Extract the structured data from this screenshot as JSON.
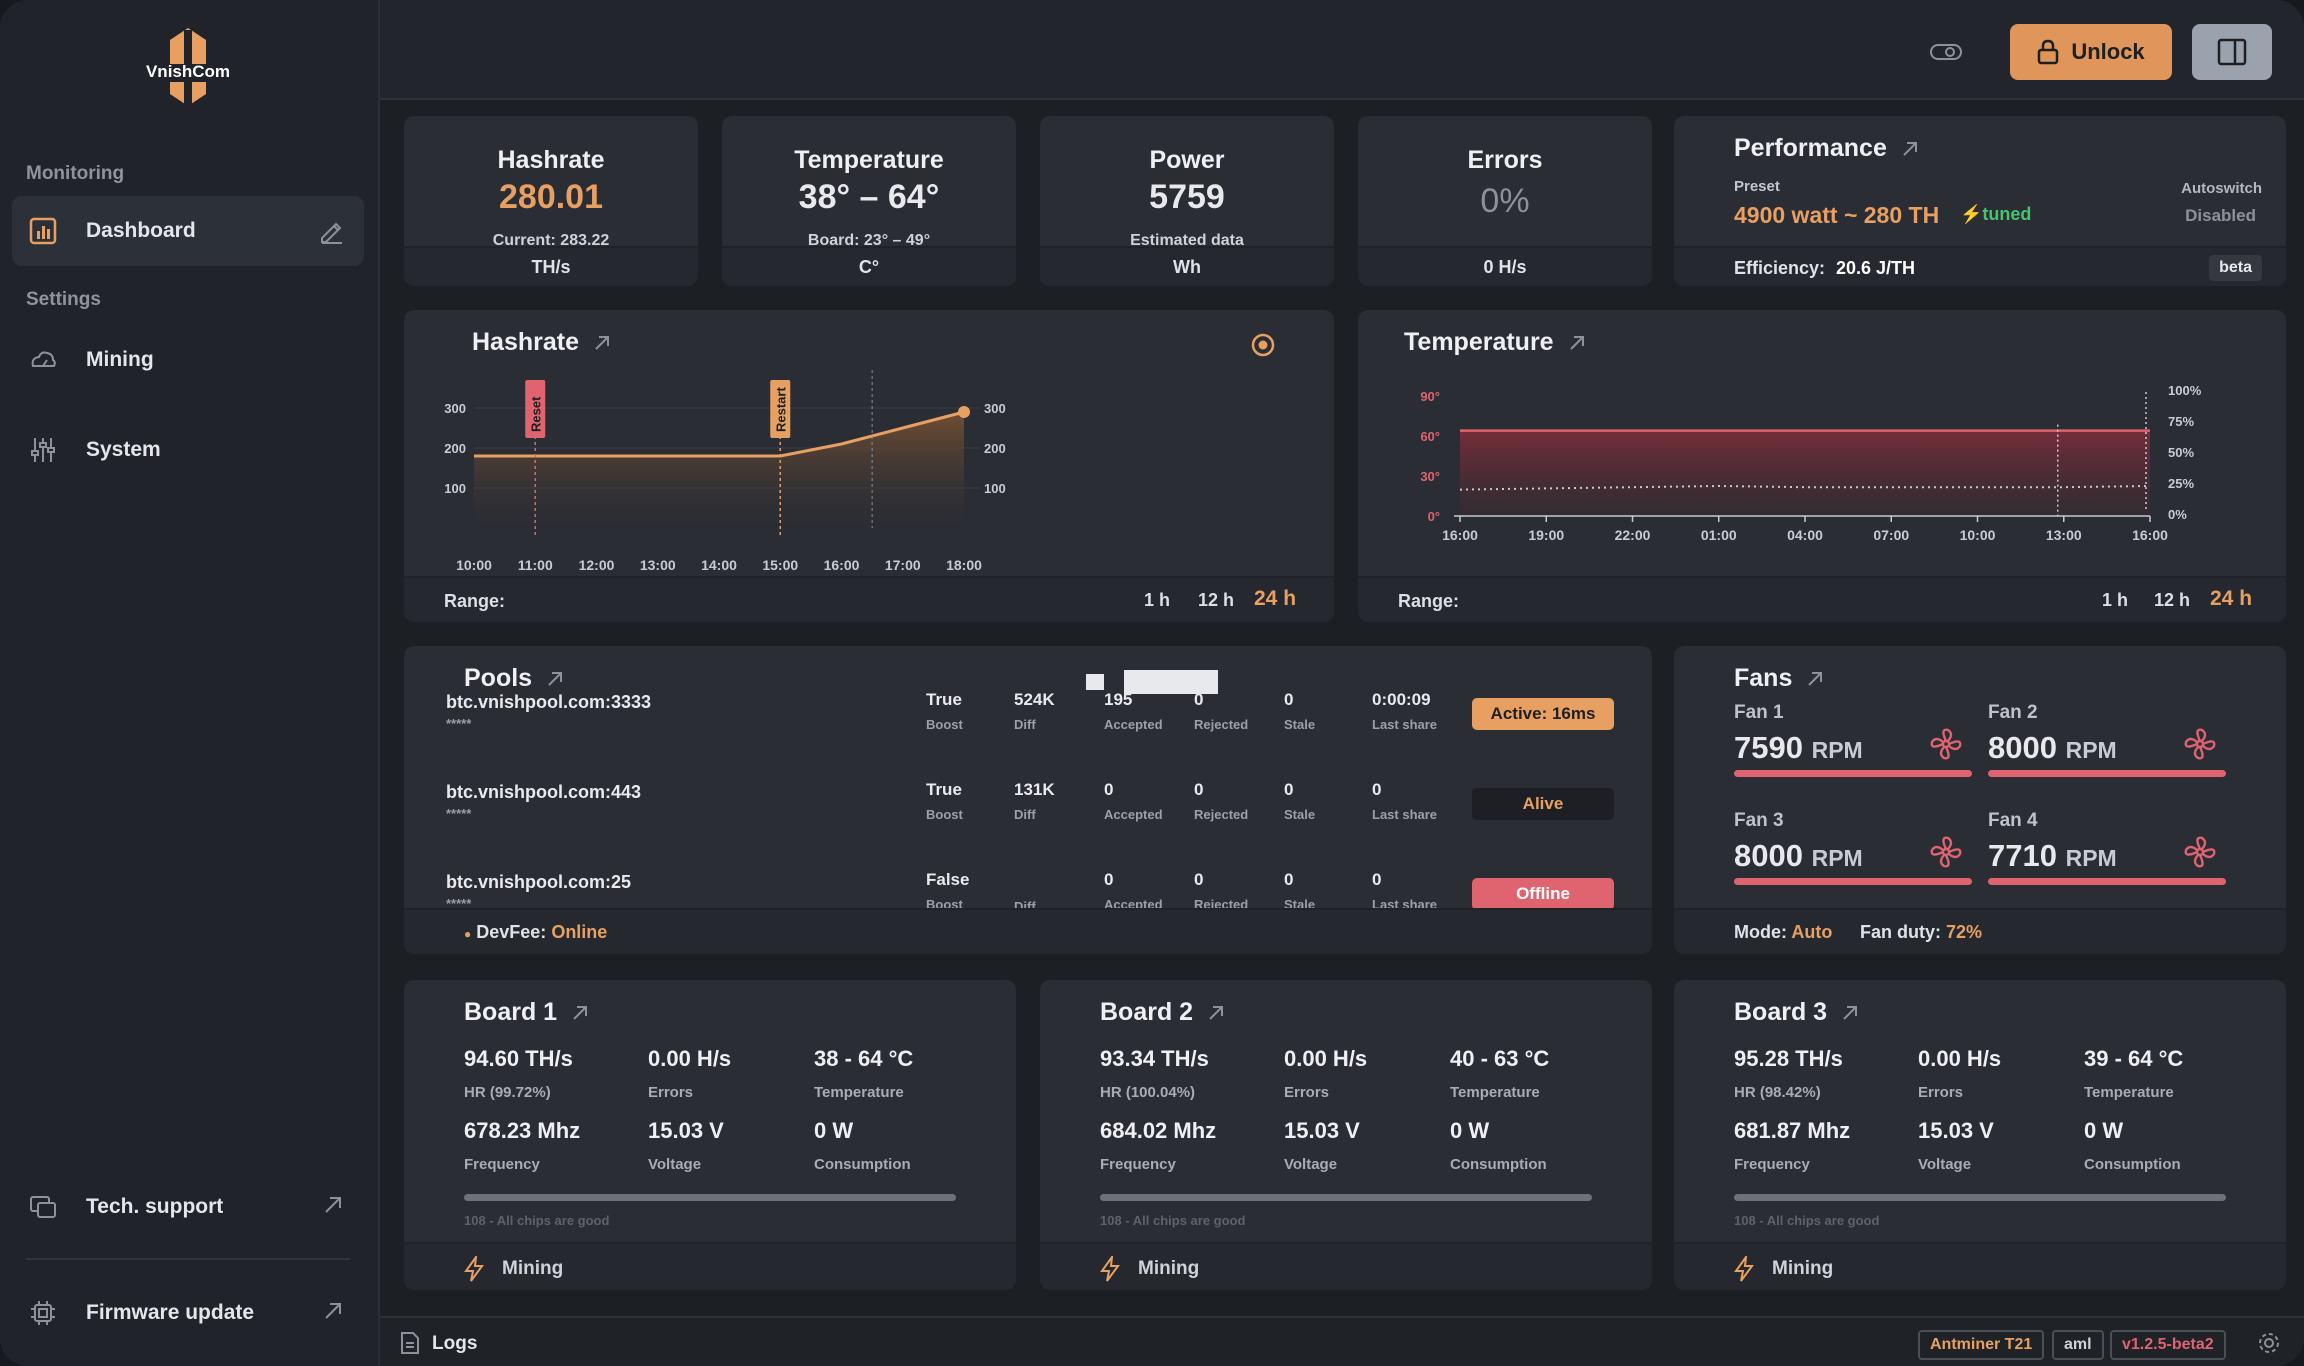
{
  "app": {
    "logo": "VnishCom"
  },
  "sidebar": {
    "sections": [
      "Monitoring",
      "Settings"
    ],
    "items": [
      {
        "label": "Dashboard",
        "icon": "chart-icon"
      },
      {
        "label": "Mining",
        "icon": "cloud-icon"
      },
      {
        "label": "System",
        "icon": "sliders-icon"
      }
    ],
    "bottom": [
      {
        "label": "Tech. support",
        "icon": "support-icon"
      },
      {
        "label": "Firmware update",
        "icon": "chip-icon"
      }
    ]
  },
  "topbar": {
    "unlock_label": "Unlock"
  },
  "stats": {
    "hashrate": {
      "title": "Hashrate",
      "value": "280.01",
      "sub": "Current: 283.22",
      "unit": "TH/s"
    },
    "temperature": {
      "title": "Temperature",
      "value": "38° – 64°",
      "sub": "Board: 23° – 49°",
      "unit": "C°"
    },
    "power": {
      "title": "Power",
      "value": "5759",
      "sub": "Estimated data",
      "unit": "Wh"
    },
    "errors": {
      "title": "Errors",
      "value": "0%",
      "unit": "0 H/s"
    }
  },
  "performance": {
    "title": "Performance",
    "preset_label": "Preset",
    "preset_value": "4900 watt ~ 280 TH",
    "tuned": "tuned",
    "autoswitch_label": "Autoswitch",
    "autoswitch_value": "Disabled",
    "efficiency_label": "Efficiency:",
    "efficiency_value": "20.6 J/TH",
    "beta": "beta"
  },
  "hashrate_chart": {
    "title": "Hashrate",
    "range_label": "Range:",
    "ranges": [
      "1 h",
      "12 h",
      "24 h"
    ],
    "selected_range": "24 h",
    "markers": [
      "Reset",
      "Restart"
    ]
  },
  "temperature_chart": {
    "title": "Temperature",
    "range_label": "Range:",
    "ranges": [
      "1 h",
      "12 h",
      "24 h"
    ],
    "selected_range": "24 h"
  },
  "chart_data": [
    {
      "type": "area",
      "title": "Hashrate",
      "x": [
        "10:00",
        "11:00",
        "12:00",
        "13:00",
        "14:00",
        "15:00",
        "16:00",
        "17:00",
        "18:00"
      ],
      "values": [
        180,
        180,
        180,
        180,
        180,
        180,
        210,
        250,
        290
      ],
      "ylim": [
        0,
        340
      ],
      "yticks": [
        100,
        200,
        300
      ],
      "ytick_labels": [
        "100",
        "200",
        "300"
      ],
      "annotations": [
        {
          "x": "11:00",
          "label": "Reset"
        },
        {
          "x": "15:00",
          "label": "Restart"
        }
      ],
      "color": "#e7a062"
    },
    {
      "type": "area",
      "title": "Temperature",
      "x": [
        "16:00",
        "19:00",
        "22:00",
        "01:00",
        "04:00",
        "07:00",
        "10:00",
        "13:00",
        "16:00"
      ],
      "ylim": [
        0,
        90
      ],
      "left_ticks": [
        "0°",
        "30°",
        "60°",
        "90°"
      ],
      "right_ticks": [
        "0%",
        "25%",
        "50%",
        "75%",
        "100%"
      ],
      "series": [
        {
          "name": "Temperature",
          "values": [
            64,
            64,
            64,
            64,
            64,
            64,
            64,
            64,
            64
          ],
          "color": "#e06470"
        },
        {
          "name": "Fan duty",
          "values": [
            22,
            23,
            24,
            25,
            24,
            24,
            24,
            24,
            25
          ],
          "color": "#c8ccd2"
        }
      ]
    }
  ],
  "pools": {
    "title": "Pools",
    "rows": [
      {
        "url": "btc.vnishpool.com:3333",
        "user": "*****",
        "boost": "True",
        "diff": "524K",
        "accepted": "195",
        "rejected": "0",
        "stale": "0",
        "last_share": "0:00:09",
        "status": "Active: 16ms",
        "status_color": "#e7a062"
      },
      {
        "url": "btc.vnishpool.com:443",
        "user": "*****",
        "boost": "True",
        "diff": "131K",
        "accepted": "0",
        "rejected": "0",
        "stale": "0",
        "last_share": "0",
        "status": "Alive",
        "status_color": "#1d1f24"
      },
      {
        "url": "btc.vnishpool.com:25",
        "user": "*****",
        "boost": "False",
        "diff": "",
        "accepted": "0",
        "rejected": "0",
        "stale": "0",
        "last_share": "0",
        "status": "Offline",
        "status_color": "#e06470"
      }
    ],
    "col_labels": {
      "boost": "Boost",
      "diff": "Diff",
      "accepted": "Accepted",
      "rejected": "Rejected",
      "stale": "Stale",
      "last_share": "Last share"
    },
    "devfee_label": "DevFee:",
    "devfee_value": "Online"
  },
  "fans": {
    "title": "Fans",
    "items": [
      {
        "name": "Fan 1",
        "rpm": "7590"
      },
      {
        "name": "Fan 2",
        "rpm": "8000"
      },
      {
        "name": "Fan 3",
        "rpm": "8000"
      },
      {
        "name": "Fan 4",
        "rpm": "7710"
      }
    ],
    "unit": "RPM",
    "mode_label": "Mode:",
    "mode_value": "Auto",
    "duty_label": "Fan duty:",
    "duty_value": "72%"
  },
  "boards": [
    {
      "title": "Board 1",
      "hashrate": "94.60 TH/s",
      "hr_pct": "HR (99.72%)",
      "errors": "0.00 H/s",
      "temp": "38 - 64 °C",
      "freq": "678.23 Mhz",
      "voltage": "15.03 V",
      "consumption": "0 W",
      "chips": "108 - All chips are good",
      "status": "Mining"
    },
    {
      "title": "Board 2",
      "hashrate": "93.34 TH/s",
      "hr_pct": "HR (100.04%)",
      "errors": "0.00 H/s",
      "temp": "40 - 63 °C",
      "freq": "684.02 Mhz",
      "voltage": "15.03 V",
      "consumption": "0 W",
      "chips": "108 - All chips are good",
      "status": "Mining"
    },
    {
      "title": "Board 3",
      "hashrate": "95.28 TH/s",
      "hr_pct": "HR (98.42%)",
      "errors": "0.00 H/s",
      "temp": "39 - 64 °C",
      "freq": "681.87 Mhz",
      "voltage": "15.03 V",
      "consumption": "0 W",
      "chips": "108 - All chips are good",
      "status": "Mining"
    }
  ],
  "board_labels": {
    "errors": "Errors",
    "temperature": "Temperature",
    "frequency": "Frequency",
    "voltage": "Voltage",
    "consumption": "Consumption"
  },
  "footer": {
    "logs": "Logs",
    "model": "Antminer T21",
    "platform": "aml",
    "version": "v1.2.5-beta2"
  }
}
